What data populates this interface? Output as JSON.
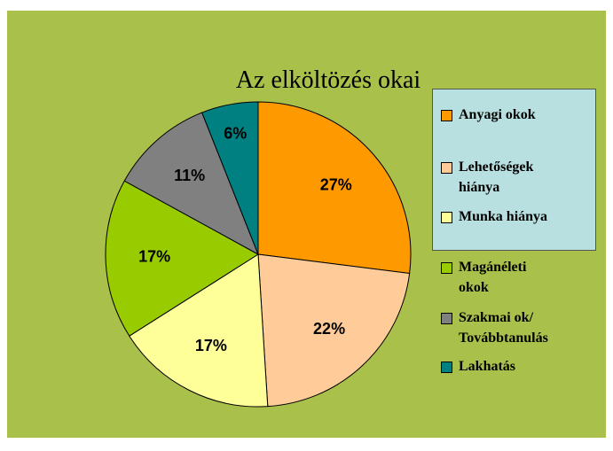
{
  "chart_data": {
    "type": "pie",
    "title": "Az elköltözés okai",
    "categories": [
      "Anyagi okok",
      "Lehetőségek\nhiánya",
      "Munka hiánya",
      "Magánéleti\nokok",
      "Szakmai ok/\nTovábbtanulás",
      "Lakhatás"
    ],
    "values": [
      27,
      22,
      17,
      17,
      11,
      6
    ],
    "value_labels": [
      "27%",
      "22%",
      "17%",
      "17%",
      "11%",
      "6%"
    ],
    "colors": [
      "#FF9900",
      "#FFCC99",
      "#FFFF99",
      "#99CC00",
      "#808080",
      "#008080"
    ]
  }
}
